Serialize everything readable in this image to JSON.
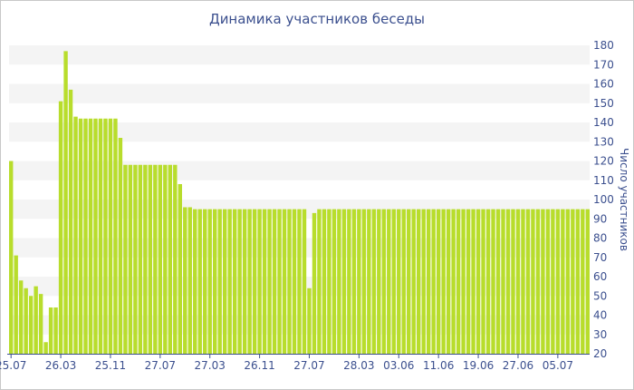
{
  "chart_data": {
    "type": "bar",
    "title": "Динамика участников беседы",
    "xlabel": "",
    "ylabel": "Число участников",
    "ylim": [
      20,
      180
    ],
    "yticks": [
      20,
      30,
      40,
      50,
      60,
      70,
      80,
      90,
      100,
      110,
      120,
      130,
      140,
      150,
      160,
      170,
      180
    ],
    "y_axis_side": "right",
    "grid": "alternating horizontal bands",
    "bar_color": "#b8dd2c",
    "x_tick_labels": [
      "25.07",
      "26.03",
      "25.11",
      "27.07",
      "27.03",
      "26.11",
      "27.07",
      "28.03",
      "03.06",
      "11.06",
      "19.06",
      "27.06",
      "05.07"
    ],
    "x_tick_bar_index": [
      0,
      10,
      20,
      30,
      40,
      50,
      60,
      70,
      78,
      86,
      94,
      102,
      110
    ],
    "series": [
      {
        "values": [
          120,
          71,
          58,
          54,
          50,
          55,
          51,
          26,
          44,
          44,
          151,
          177,
          157,
          143,
          142,
          142,
          142,
          142,
          142,
          142,
          142,
          142,
          132,
          118,
          118,
          118,
          118,
          118,
          118,
          118,
          118,
          118,
          118,
          118,
          108,
          96,
          96,
          95,
          95,
          95,
          95,
          95,
          95,
          95,
          95,
          95,
          95,
          95,
          95,
          95,
          95,
          95,
          95,
          95,
          95,
          95,
          95,
          95,
          95,
          95,
          54,
          93,
          95,
          95,
          95,
          95,
          95,
          95,
          95,
          95,
          95,
          95,
          95,
          95,
          95,
          95,
          95,
          95,
          95,
          95,
          95,
          95,
          95,
          95,
          95,
          95,
          95,
          95,
          95,
          95,
          95,
          95,
          95,
          95,
          95,
          95,
          95,
          95,
          95,
          95,
          95,
          95,
          95,
          95,
          95,
          95,
          95,
          95,
          95,
          95,
          95,
          95,
          95,
          95,
          95,
          95,
          95
        ]
      }
    ]
  }
}
